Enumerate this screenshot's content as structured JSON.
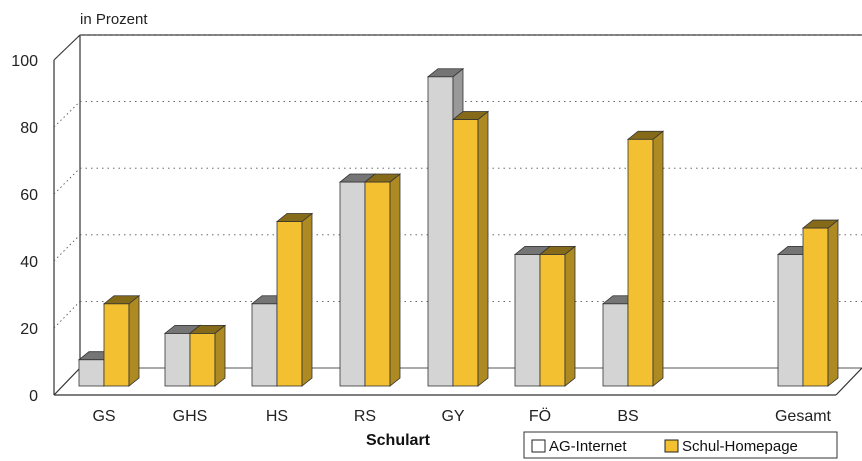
{
  "chart_data": {
    "type": "bar",
    "ylabel": "in Prozent",
    "xlabel": "Schulart",
    "ylim": [
      0,
      100
    ],
    "yticks": [
      "0",
      "20",
      "40",
      "60",
      "80",
      "100"
    ],
    "categories": [
      "GS",
      "GHS",
      "HS",
      "RS",
      "GY",
      "FÖ",
      "BS",
      "Gesamt"
    ],
    "series": [
      {
        "name": "AG-Internet",
        "color": "#d4d4d4",
        "values": [
          8,
          16,
          25,
          62,
          94,
          40,
          25,
          40
        ]
      },
      {
        "name": "Schul-Homepage",
        "color": "#f2c030",
        "values": [
          25,
          16,
          50,
          62,
          81,
          40,
          75,
          48
        ]
      }
    ],
    "grid": true,
    "legend_position": "bottom-right"
  }
}
